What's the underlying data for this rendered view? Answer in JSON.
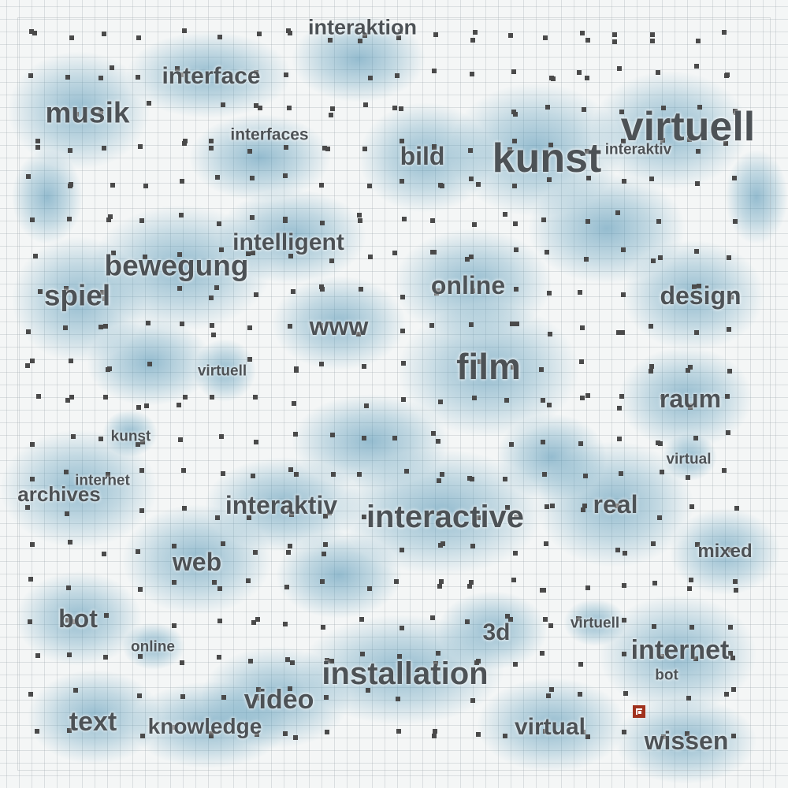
{
  "terms": [
    {
      "text": "interaktion",
      "size": "large"
    },
    {
      "text": "interface",
      "size": "large"
    },
    {
      "text": "musik",
      "size": "xlarge"
    },
    {
      "text": "interfaces",
      "size": "small"
    },
    {
      "text": "bild",
      "size": "large"
    },
    {
      "text": "kunst",
      "size": "xxlarge"
    },
    {
      "text": "virtuell",
      "size": "xxlarge"
    },
    {
      "text": "interaktiv",
      "size": "small"
    },
    {
      "text": "intelligent",
      "size": "large"
    },
    {
      "text": "bewegung",
      "size": "xlarge"
    },
    {
      "text": "online",
      "size": "large"
    },
    {
      "text": "spiel",
      "size": "xlarge"
    },
    {
      "text": "design",
      "size": "large"
    },
    {
      "text": "www",
      "size": "large"
    },
    {
      "text": "film",
      "size": "xxlarge"
    },
    {
      "text": "virtuell",
      "size": "small"
    },
    {
      "text": "raum",
      "size": "large"
    },
    {
      "text": "kunst",
      "size": "small"
    },
    {
      "text": "virtual",
      "size": "small"
    },
    {
      "text": "internet",
      "size": "small"
    },
    {
      "text": "archives",
      "size": "large"
    },
    {
      "text": "interaktiv",
      "size": "large"
    },
    {
      "text": "interactive",
      "size": "xlarge"
    },
    {
      "text": "real",
      "size": "large"
    },
    {
      "text": "mixed",
      "size": "medium"
    },
    {
      "text": "web",
      "size": "large"
    },
    {
      "text": "bot",
      "size": "large"
    },
    {
      "text": "3d",
      "size": "large"
    },
    {
      "text": "virtuell",
      "size": "small"
    },
    {
      "text": "online",
      "size": "small"
    },
    {
      "text": "internet",
      "size": "large"
    },
    {
      "text": "bot",
      "size": "small"
    },
    {
      "text": "installation",
      "size": "xlarge"
    },
    {
      "text": "video",
      "size": "large"
    },
    {
      "text": "text",
      "size": "large"
    },
    {
      "text": "knowledge",
      "size": "large"
    },
    {
      "text": "virtual",
      "size": "large"
    },
    {
      "text": "wissen",
      "size": "large"
    }
  ],
  "colors": {
    "text": "#4d5256",
    "marker": "#a0321e",
    "density": "#468caf",
    "grid_dot": "#4a4a4a"
  }
}
